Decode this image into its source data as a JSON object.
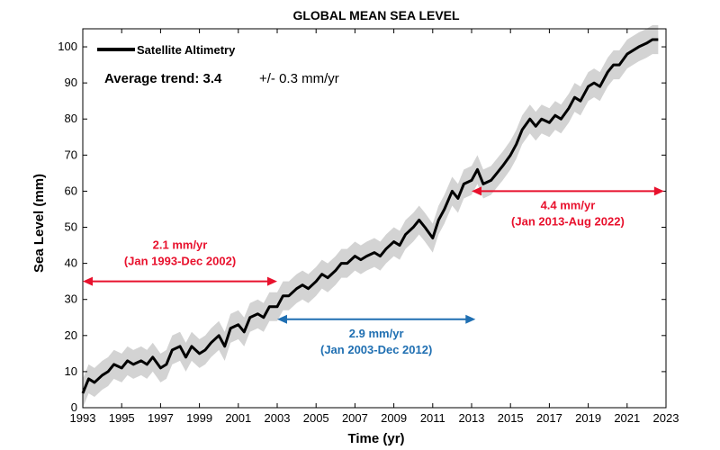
{
  "chart_data": {
    "type": "line",
    "title": "GLOBAL MEAN SEA LEVEL",
    "xlabel": "Time (yr)",
    "ylabel": "Sea Level (mm)",
    "xlim": [
      1993,
      2023
    ],
    "ylim": [
      0,
      105
    ],
    "x_ticks": [
      "1993",
      "1995",
      "1997",
      "1999",
      "2001",
      "2003",
      "2005",
      "2007",
      "2009",
      "2011",
      "2013",
      "2015",
      "2017",
      "2019",
      "2021",
      "2023"
    ],
    "y_ticks": [
      "0",
      "10",
      "20",
      "30",
      "40",
      "50",
      "60",
      "70",
      "80",
      "90",
      "100"
    ],
    "legend": "top-left",
    "grid": false,
    "colors": {
      "series": "#000000",
      "band": "#d3d3d3",
      "red": "#e8112d",
      "blue": "#1f6fb2"
    },
    "series": [
      {
        "name": "Satellite Altimetry",
        "x": [
          1993.0,
          1993.3,
          1993.6,
          1994.0,
          1994.3,
          1994.6,
          1995.0,
          1995.3,
          1995.6,
          1996.0,
          1996.3,
          1996.6,
          1997.0,
          1997.3,
          1997.6,
          1998.0,
          1998.3,
          1998.6,
          1999.0,
          1999.3,
          1999.6,
          2000.0,
          2000.3,
          2000.6,
          2001.0,
          2001.3,
          2001.6,
          2002.0,
          2002.3,
          2002.6,
          2003.0,
          2003.3,
          2003.6,
          2004.0,
          2004.3,
          2004.6,
          2005.0,
          2005.3,
          2005.6,
          2006.0,
          2006.3,
          2006.6,
          2007.0,
          2007.3,
          2007.6,
          2008.0,
          2008.3,
          2008.6,
          2009.0,
          2009.3,
          2009.6,
          2010.0,
          2010.3,
          2010.6,
          2011.0,
          2011.3,
          2011.6,
          2012.0,
          2012.3,
          2012.6,
          2013.0,
          2013.3,
          2013.6,
          2014.0,
          2014.3,
          2014.6,
          2015.0,
          2015.3,
          2015.6,
          2016.0,
          2016.3,
          2016.6,
          2017.0,
          2017.3,
          2017.6,
          2018.0,
          2018.3,
          2018.6,
          2019.0,
          2019.3,
          2019.6,
          2020.0,
          2020.3,
          2020.6,
          2021.0,
          2021.3,
          2021.6,
          2022.0,
          2022.3,
          2022.6
        ],
        "values": [
          4,
          8,
          7,
          9,
          10,
          12,
          11,
          13,
          12,
          13,
          12,
          14,
          11,
          12,
          16,
          17,
          14,
          17,
          15,
          16,
          18,
          20,
          17,
          22,
          23,
          21,
          25,
          26,
          25,
          28,
          28,
          31,
          31,
          33,
          34,
          33,
          35,
          37,
          36,
          38,
          40,
          40,
          42,
          41,
          42,
          43,
          42,
          44,
          46,
          45,
          48,
          50,
          52,
          50,
          47,
          52,
          55,
          60,
          58,
          62,
          63,
          66,
          62,
          63,
          65,
          67,
          70,
          73,
          77,
          80,
          78,
          80,
          79,
          81,
          80,
          83,
          86,
          85,
          89,
          90,
          89,
          93,
          95,
          95,
          98,
          99,
          100,
          101,
          102,
          102
        ]
      }
    ],
    "trends": [
      {
        "rate": "2.1 mm/yr",
        "period": "(Jan 1993-Dec 2002)",
        "start": 1993.0,
        "end": 2003.0,
        "level": 35,
        "color": "red"
      },
      {
        "rate": "2.9 mm/yr",
        "period": "(Jan 2003-Dec 2012)",
        "start": 2003.0,
        "end": 2013.2,
        "level": 24.5,
        "color": "blue"
      },
      {
        "rate": "4.4 mm/yr",
        "period": "(Jan 2013-Aug 2022)",
        "start": 2013.0,
        "end": 2022.9,
        "level": 60,
        "color": "red"
      }
    ],
    "average_trend": {
      "label": "Average trend: 3.4",
      "uncertainty": "+/- 0.3 mm/yr"
    }
  }
}
